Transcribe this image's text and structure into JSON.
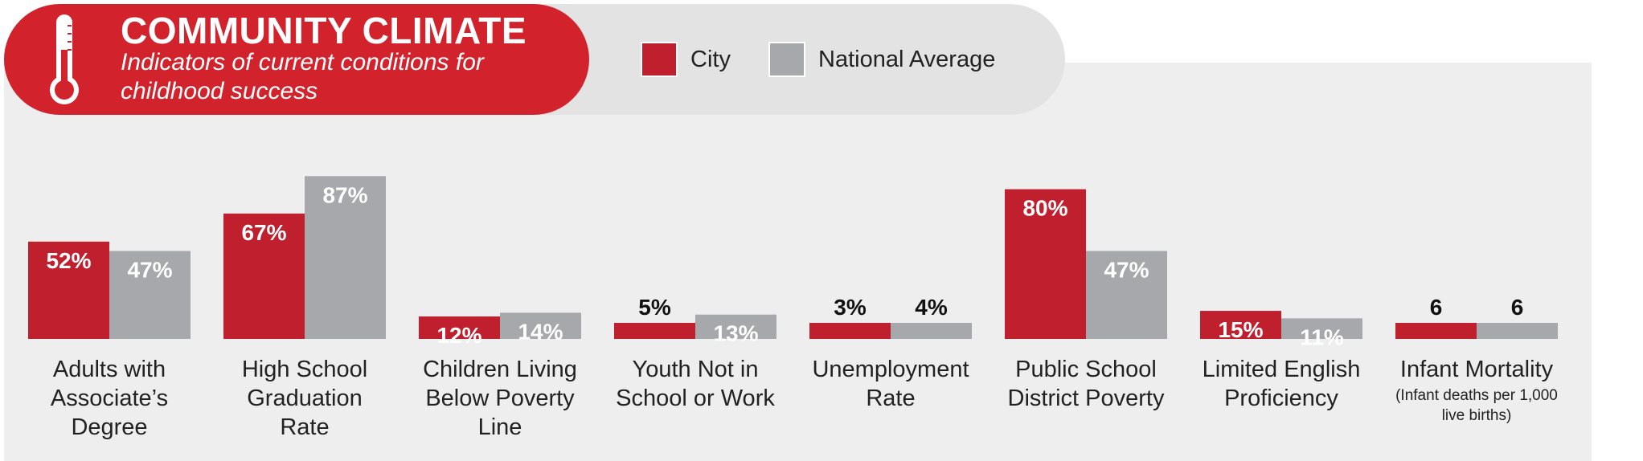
{
  "header": {
    "title": "COMMUNITY CLIMATE",
    "subtitle": "Indicators of current conditions for childhood success",
    "icon": "thermometer-icon"
  },
  "legend": {
    "city_label": "City",
    "national_label": "National Average"
  },
  "colors": {
    "city": "#c0202e",
    "national": "#a7a8ac",
    "title_background": "#d2232d"
  },
  "chart_data": {
    "type": "bar",
    "series": [
      {
        "name": "City",
        "values": [
          52,
          67,
          12,
          5,
          3,
          80,
          15,
          6
        ]
      },
      {
        "name": "National Average",
        "values": [
          47,
          87,
          14,
          13,
          4,
          47,
          11,
          6
        ]
      }
    ],
    "value_labels": {
      "City": [
        "52%",
        "67%",
        "12%",
        "5%",
        "3%",
        "80%",
        "15%",
        "6"
      ],
      "National Average": [
        "47%",
        "87%",
        "14%",
        "13%",
        "4%",
        "47%",
        "11%",
        "6"
      ]
    },
    "categories": [
      "Adults with Associate’s Degree",
      "High School Graduation Rate",
      "Children Living Below Poverty Line",
      "Youth Not in School or Work",
      "Unemployment Rate",
      "Public School District Poverty",
      "Limited English Proficiency",
      "Infant Mortality"
    ],
    "category_notes": [
      "",
      "",
      "",
      "",
      "",
      "",
      "",
      "(Infant deaths per 1,000 live births)"
    ],
    "ylim": [
      0,
      100
    ],
    "grid": false,
    "legend_position": "top"
  }
}
